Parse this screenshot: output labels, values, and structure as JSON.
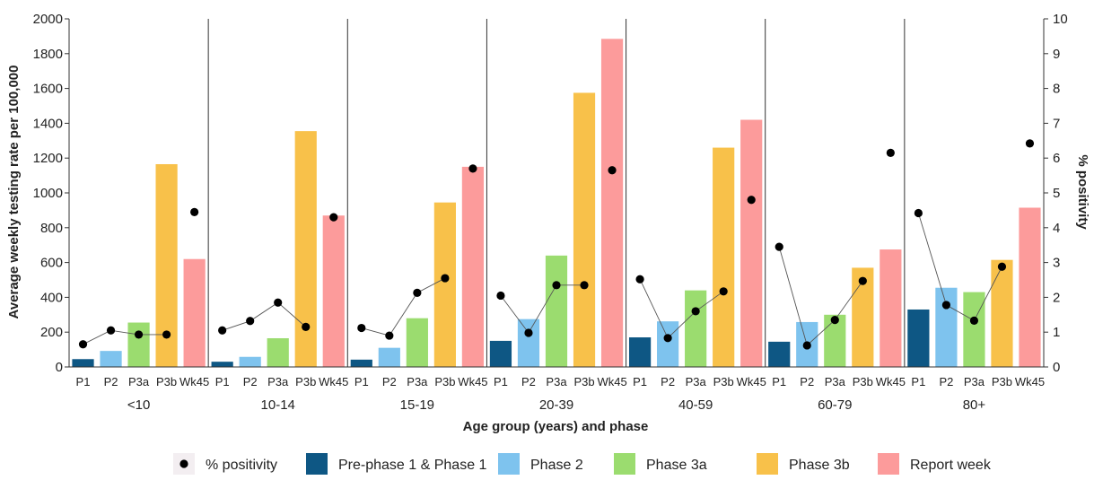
{
  "chart_data": {
    "type": "bar",
    "title": "",
    "xlabel": "Age group (years) and phase",
    "ylabel": "Average weekly testing rate per 100,000",
    "y2label": "% positivity",
    "ylim": [
      0,
      2000
    ],
    "y2lim": [
      0,
      10
    ],
    "yticks": [
      "0",
      "200",
      "400",
      "600",
      "800",
      "1000",
      "1200",
      "1400",
      "1600",
      "1800",
      "2000"
    ],
    "y2ticks": [
      "0",
      "1",
      "2",
      "3",
      "4",
      "5",
      "6",
      "7",
      "8",
      "9",
      "10"
    ],
    "phases": [
      "P1",
      "P2",
      "P3a",
      "P3b",
      "Wk45"
    ],
    "groups": [
      "<10",
      "10-14",
      "15-19",
      "20-39",
      "40-59",
      "60-79",
      "80+"
    ],
    "series": [
      {
        "name": "Pre-phase 1 & Phase 1",
        "color": "#0e5784",
        "values": [
          45,
          30,
          42,
          150,
          170,
          145,
          330
        ]
      },
      {
        "name": "Phase 2",
        "color": "#7ec3ee",
        "values": [
          92,
          58,
          110,
          275,
          262,
          258,
          455
        ]
      },
      {
        "name": "Phase 3a",
        "color": "#9bdc6f",
        "values": [
          255,
          165,
          280,
          640,
          440,
          300,
          430
        ]
      },
      {
        "name": "Phase 3b",
        "color": "#f8c14a",
        "values": [
          1165,
          1355,
          945,
          1575,
          1260,
          570,
          615
        ]
      },
      {
        "name": "Report week",
        "color": "#fc9b9b",
        "values": [
          620,
          870,
          1150,
          1885,
          1420,
          675,
          915
        ]
      }
    ],
    "positivity": {
      "name": "% positivity",
      "color": "#000000",
      "values": [
        [
          0.65,
          1.05,
          0.93,
          0.93,
          4.45
        ],
        [
          1.05,
          1.32,
          1.85,
          1.15,
          4.3
        ],
        [
          1.12,
          0.9,
          2.13,
          2.55,
          5.7
        ],
        [
          2.05,
          0.98,
          2.35,
          2.35,
          5.65
        ],
        [
          2.52,
          0.83,
          1.6,
          2.17,
          4.8
        ],
        [
          3.45,
          0.62,
          1.35,
          2.47,
          6.15
        ],
        [
          4.42,
          1.78,
          1.33,
          2.88,
          6.42
        ]
      ]
    },
    "legend_position": "bottom",
    "grid": false
  }
}
